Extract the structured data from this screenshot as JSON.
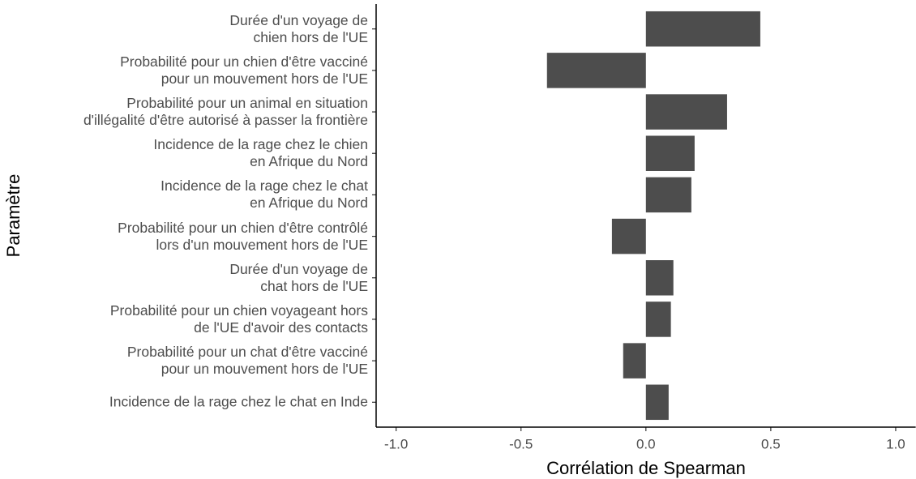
{
  "chart_data": {
    "type": "bar",
    "orientation": "horizontal",
    "x_label": "Corrélation de Spearman",
    "y_label": "Paramètre",
    "categories": [
      "Durée d'un voyage de\nchien hors de l'UE",
      "Probabilité pour un chien d'être vacciné\npour un mouvement hors de l'UE",
      "Probabilité pour un animal en situation\nd'illégalité d'être autorisé à passer la frontière",
      "Incidence de la rage chez le chien\nen Afrique du Nord",
      "Incidence de la rage chez le chat\nen Afrique du Nord",
      "Probabilité pour un chien d'être contrôlé\nlors d'un mouvement hors de l'UE",
      "Durée d'un voyage de\nchat hors de l'UE",
      "Probabilité pour un chien voyageant hors\nde l'UE d'avoir des contacts",
      "Probabilité pour un chat d'être vacciné\npour un mouvement hors de l'UE",
      "Incidence de la rage chez le chat en Inde"
    ],
    "values": [
      0.458,
      -0.396,
      0.325,
      0.195,
      0.182,
      -0.136,
      0.11,
      0.1,
      -0.091,
      0.091
    ],
    "color": "#4d4d4d",
    "xlim": [
      -1.08,
      1.08
    ],
    "xticks": [
      {
        "value": -1,
        "label": "-1.0"
      },
      {
        "value": -0.5,
        "label": "-0.5"
      },
      {
        "value": 0,
        "label": "0.0"
      },
      {
        "value": 0.5,
        "label": "0.5"
      },
      {
        "value": 1,
        "label": "1.0"
      }
    ],
    "grid": false
  }
}
